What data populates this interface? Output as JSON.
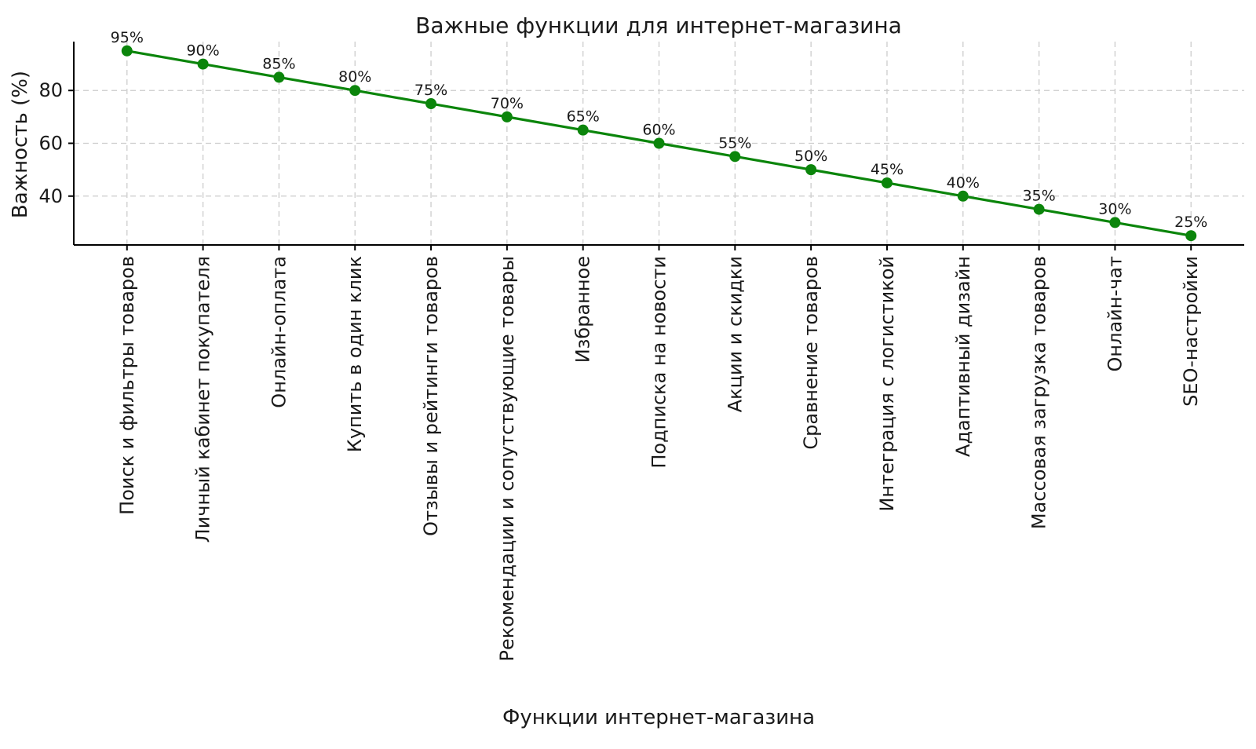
{
  "chart_data": {
    "type": "line",
    "title": "Важные функции для интернет-магазина",
    "xlabel": "Функции интернет-магазина",
    "ylabel": "Важность (%)",
    "categories": [
      "Поиск и фильтры товаров",
      "Личный кабинет покупателя",
      "Онлайн-оплата",
      "Купить в один клик",
      "Отзывы и рейтинги товаров",
      "Рекомендации и сопутствующие товары",
      "Избранное",
      "Подписка на новости",
      "Акции и скидки",
      "Сравнение товаров",
      "Интеграция с логистикой",
      "Адаптивный дизайн",
      "Массовая загрузка товаров",
      "Онлайн-чат",
      "SEO-настройки"
    ],
    "values": [
      95,
      90,
      85,
      80,
      75,
      70,
      65,
      60,
      55,
      50,
      45,
      40,
      35,
      30,
      25
    ],
    "point_labels": [
      "95%",
      "90%",
      "85%",
      "80%",
      "75%",
      "70%",
      "65%",
      "60%",
      "55%",
      "50%",
      "45%",
      "40%",
      "35%",
      "30%",
      "25%"
    ],
    "yticks": [
      40,
      60,
      80
    ],
    "ylim": [
      21.5,
      98.5
    ],
    "grid": "dashed, horizontal and vertical",
    "legend_position": "none",
    "line_color": "#0b850b",
    "marker": "circle",
    "grid_color": "#cccccc",
    "background_color": "#ffffff",
    "text_color": "#1a1a1a",
    "xticklabel_rotation_deg": 90
  }
}
